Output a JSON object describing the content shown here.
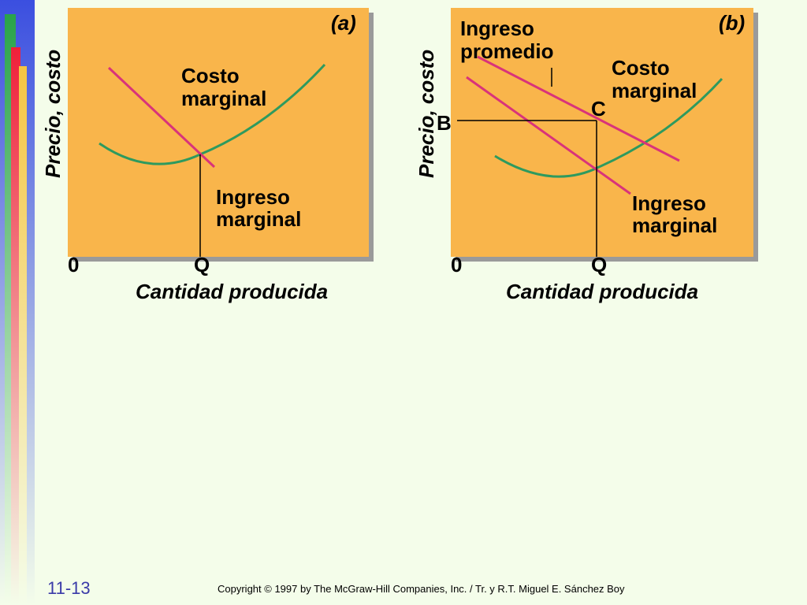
{
  "colors": {
    "panel": "#f9b54b",
    "shadow": "#9a9a9a",
    "cost_curve": "#2e9a5e",
    "revenue_line": "#d9337a",
    "background": "#f4fdea"
  },
  "panel_a": {
    "tag": "(a)",
    "ylabel": "Precio, costo",
    "xlabel": "Cantidad producida",
    "origin": "0",
    "q_label": "Q",
    "cost_label": [
      "Costo",
      "marginal"
    ],
    "mr_label": [
      "Ingreso",
      "marginal"
    ]
  },
  "panel_b": {
    "tag": "(b)",
    "ylabel": "Precio, costo",
    "xlabel": "Cantidad producida",
    "origin": "0",
    "q_label": "Q",
    "b_label": "B",
    "c_label": "C",
    "ar_label": [
      "Ingreso",
      "promedio"
    ],
    "cost_label": [
      "Costo",
      "marginal"
    ],
    "mr_label": [
      "Ingreso",
      "marginal"
    ]
  },
  "footer": {
    "slide_number": "11-13",
    "copyright": "Copyright © 1997 by The McGraw-Hill Companies, Inc. / Tr. y R.T. Miguel E. Sánchez Boy"
  }
}
